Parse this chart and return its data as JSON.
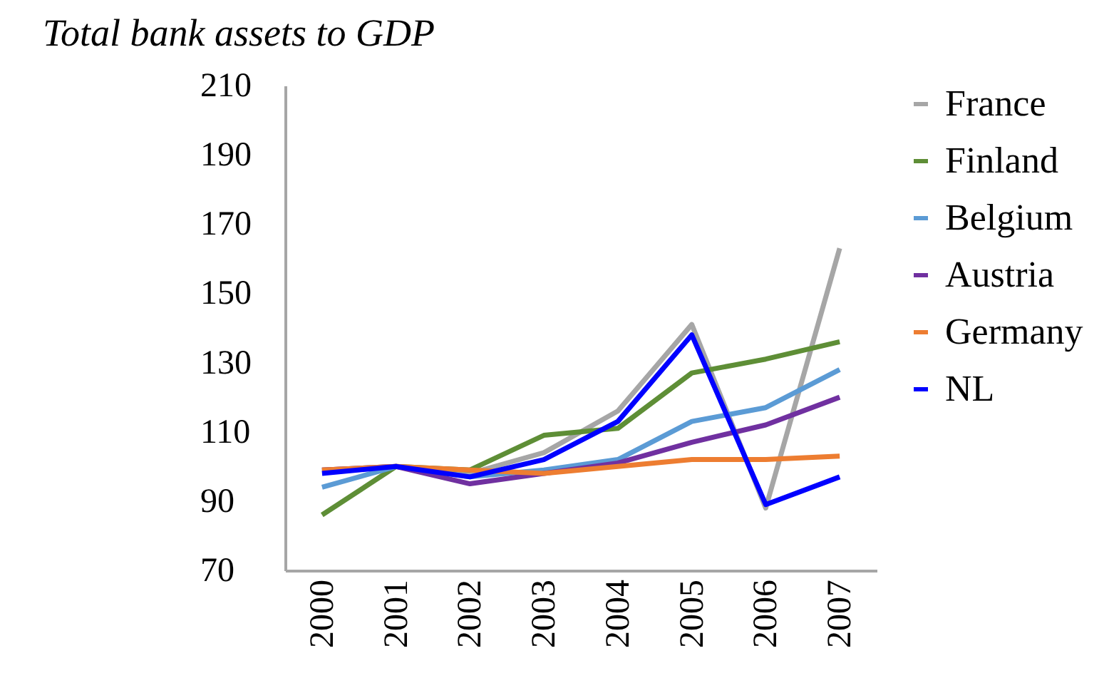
{
  "chart_data": {
    "type": "line",
    "title": "Total bank assets to GDP",
    "categories": [
      "2000",
      "2001",
      "2002",
      "2003",
      "2004",
      "2005",
      "2006",
      "2007"
    ],
    "series": [
      {
        "name": "France",
        "color": "#a6a6a6",
        "values": [
          99,
          100,
          98,
          104,
          116,
          141,
          88,
          163
        ]
      },
      {
        "name": "Finland",
        "color": "#5e8e36",
        "values": [
          86,
          100,
          99,
          109,
          111,
          127,
          131,
          136
        ]
      },
      {
        "name": "Belgium",
        "color": "#5b9bd5",
        "values": [
          94,
          100,
          97,
          99,
          102,
          113,
          117,
          128
        ]
      },
      {
        "name": "Austria",
        "color": "#7030a0",
        "values": [
          99,
          100,
          95,
          98,
          101,
          107,
          112,
          120
        ]
      },
      {
        "name": "Germany",
        "color": "#ed7d31",
        "values": [
          99,
          100,
          99,
          98,
          100,
          102,
          102,
          103
        ]
      },
      {
        "name": "NL",
        "color": "#0000ff",
        "values": [
          98,
          100,
          97,
          102,
          113,
          138,
          89,
          97
        ]
      }
    ],
    "ylim": [
      70,
      210
    ],
    "yticks": [
      70,
      90,
      110,
      130,
      150,
      170,
      190,
      210
    ],
    "grid": false,
    "legend": "right"
  }
}
